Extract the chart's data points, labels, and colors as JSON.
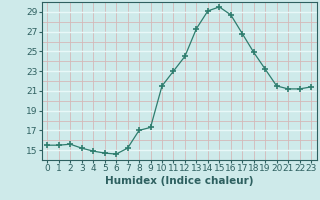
{
  "xlabel": "Humidex (Indice chaleur)",
  "x": [
    0,
    1,
    2,
    3,
    4,
    5,
    6,
    7,
    8,
    9,
    10,
    11,
    12,
    13,
    14,
    15,
    16,
    17,
    18,
    19,
    20,
    21,
    22,
    23
  ],
  "y": [
    15.5,
    15.5,
    15.6,
    15.2,
    14.9,
    14.7,
    14.6,
    15.2,
    17.0,
    17.3,
    21.5,
    23.0,
    24.5,
    27.3,
    29.1,
    29.5,
    28.7,
    26.8,
    24.9,
    23.2,
    21.5,
    21.2,
    21.2,
    21.4
  ],
  "line_color": "#2e7d6e",
  "marker": "+",
  "marker_size": 5,
  "marker_lw": 1.2,
  "bg_color": "#ceeaea",
  "grid_white_color": "#e8f8f8",
  "grid_pink_color": "#d4b8b8",
  "ylim": [
    14.0,
    30.0
  ],
  "yticks": [
    15,
    17,
    19,
    21,
    23,
    25,
    27,
    29
  ],
  "xlim": [
    -0.5,
    23.5
  ],
  "xticks": [
    0,
    1,
    2,
    3,
    4,
    5,
    6,
    7,
    8,
    9,
    10,
    11,
    12,
    13,
    14,
    15,
    16,
    17,
    18,
    19,
    20,
    21,
    22,
    23
  ],
  "tick_fontsize": 6.5,
  "xlabel_fontsize": 7.5,
  "axis_color": "#2e6060"
}
